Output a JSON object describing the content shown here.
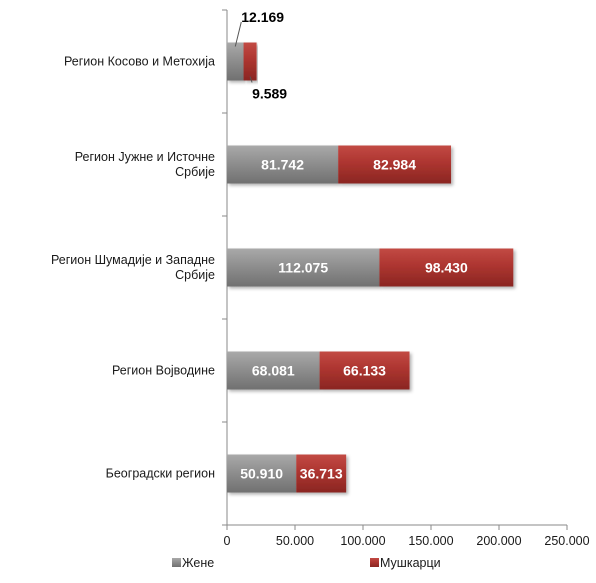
{
  "chart_data": {
    "type": "bar",
    "orientation": "horizontal",
    "stacked": true,
    "categories": [
      "Регион Косово и Метохија",
      "Регион Јужне и Источне Србије",
      "Регион Шумадије и Западне Србије",
      "Регион Војводине",
      "Београдски регион"
    ],
    "category_lines": [
      [
        "Регион Косово и Метохија"
      ],
      [
        "Регион Јужне и Источне",
        "Србије"
      ],
      [
        "Регион Шумадије и Западне",
        "Србије"
      ],
      [
        "Регион Војводине"
      ],
      [
        "Београдски регион"
      ]
    ],
    "series": [
      {
        "name": "Жене",
        "color": "#8c8c8c",
        "values": [
          12169,
          81742,
          112075,
          68081,
          50910
        ],
        "labels": [
          "12.169",
          "81.742",
          "112.075",
          "68.081",
          "50.910"
        ]
      },
      {
        "name": "Мушкарци",
        "color": "#b33a35",
        "values": [
          9589,
          82984,
          98430,
          66133,
          36713
        ],
        "labels": [
          "9.589",
          "82.984",
          "98.430",
          "66.133",
          "36.713"
        ]
      }
    ],
    "xlim": [
      0,
      250000
    ],
    "x_ticks": [
      0,
      50000,
      100000,
      150000,
      200000,
      250000
    ],
    "x_tick_labels": [
      "0",
      "50.000",
      "100.000",
      "150.000",
      "200.000",
      "250.000"
    ],
    "grid": false,
    "legend_position": "bottom"
  }
}
